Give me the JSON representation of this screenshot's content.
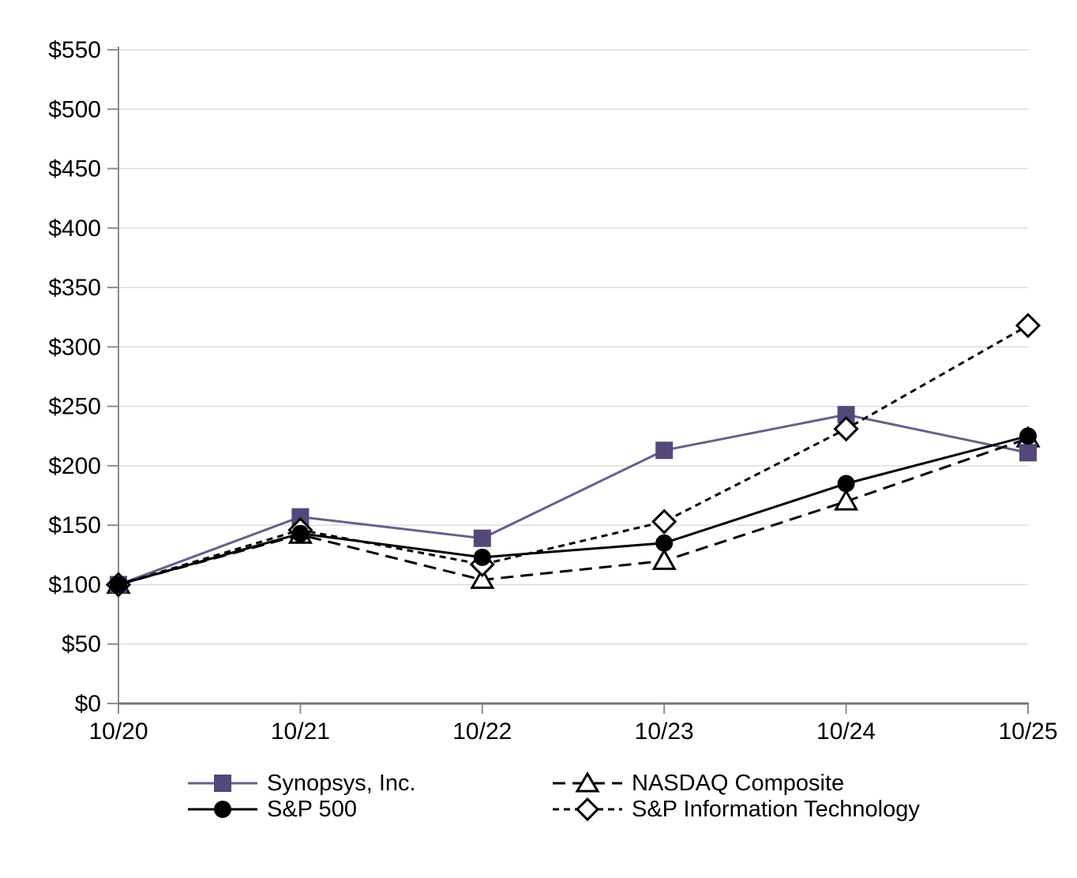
{
  "chart_data": {
    "type": "line",
    "title": "",
    "categories": [
      "10/20",
      "10/21",
      "10/22",
      "10/23",
      "10/24",
      "10/25"
    ],
    "series": [
      {
        "name": "Synopsys, Inc.",
        "slug": "synopsys",
        "values": [
          100,
          157,
          139,
          213,
          243,
          211
        ],
        "line_color": "#685E8E",
        "line_style": "solid",
        "marker": "square",
        "marker_fill": "#54487A",
        "marker_stroke": "none"
      },
      {
        "name": "S&P 500",
        "slug": "sp500",
        "values": [
          100,
          143,
          123,
          135,
          185,
          225
        ],
        "line_color": "#000000",
        "line_style": "solid",
        "marker": "circle",
        "marker_fill": "#000000",
        "marker_stroke": "none"
      },
      {
        "name": "NASDAQ Composite",
        "slug": "nasdaq-composite",
        "values": [
          100,
          142,
          104,
          120,
          170,
          223
        ],
        "line_color": "#000000",
        "line_style": "long-dash",
        "marker": "triangle-open",
        "marker_fill": "#FFFFFF",
        "marker_stroke": "#000000"
      },
      {
        "name": "S&P Information Technology",
        "slug": "sp-information-technology",
        "values": [
          100,
          146,
          117,
          153,
          231,
          318
        ],
        "line_color": "#000000",
        "line_style": "short-dash",
        "marker": "diamond-open",
        "marker_fill": "#FFFFFF",
        "marker_stroke": "#000000"
      }
    ],
    "xlabel": "",
    "ylabel": "",
    "ylim": [
      0,
      550
    ],
    "y_tick_step": 50,
    "y_tick_prefix": "$",
    "grid": "horizontal",
    "legend_position": "bottom",
    "marker_z_order": [
      "nasdaq-composite",
      "synopsys",
      "sp-information-technology",
      "sp500"
    ],
    "colors": {
      "background": "#FFFFFF",
      "gridline": "#DDDDDD",
      "y_axis": "#8C8C8C",
      "x_axis": "#737373",
      "tick": "#8C8C8C",
      "text": "#000000",
      "accent_purple_line": "#685E8E",
      "accent_purple_marker": "#54487A"
    }
  }
}
